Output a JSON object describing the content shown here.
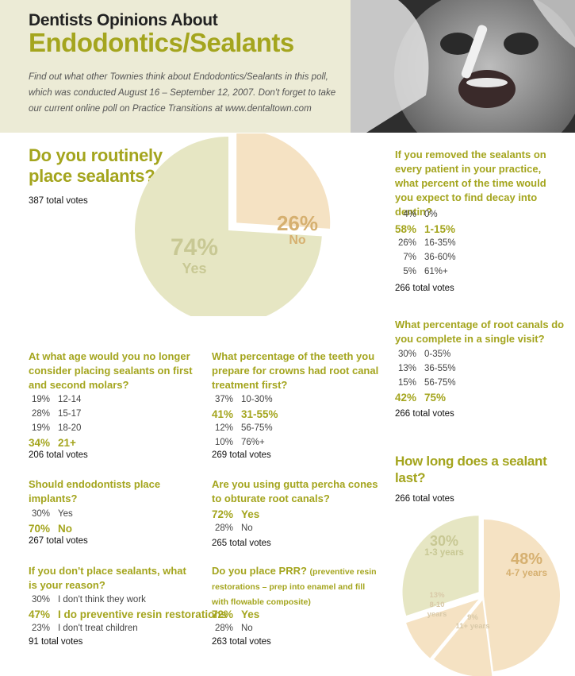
{
  "header": {
    "title_line1": "Dentists Opinions About",
    "title_line2": "Endodontics/Sealants",
    "intro": "Find out what other Townies think about Endodontics/Sealants in this poll, which was conducted August 16 – September 12, 2007. Don't forget to take our current online poll on Practice Transitions at www.dentaltown.com"
  },
  "colors": {
    "accent": "#a4a51e",
    "pie_green": "#e6e6c3",
    "pie_peach": "#f5e2c3",
    "dark_green": "#c8c894",
    "dark_orange": "#d6b070"
  },
  "icons": {
    "photo": "child-dental-exam-photo"
  },
  "chart_data": [
    {
      "type": "pie",
      "title": "Do you routinely place sealants?",
      "total_votes": "387 total votes",
      "slices": [
        {
          "label": "Yes",
          "value": 74
        },
        {
          "label": "No",
          "value": 26
        }
      ]
    },
    {
      "type": "table",
      "title": "If you removed the sealants on every patient in your practice, what percent of the time would you expect to find decay into dentin?",
      "total_votes": "266 total votes",
      "rows": [
        {
          "pct": "4%",
          "label": "0%",
          "highlight": false
        },
        {
          "pct": "58%",
          "label": "1-15%",
          "highlight": true
        },
        {
          "pct": "26%",
          "label": "16-35%",
          "highlight": false
        },
        {
          "pct": "7%",
          "label": "36-60%",
          "highlight": false
        },
        {
          "pct": "5%",
          "label": "61%+",
          "highlight": false
        }
      ]
    },
    {
      "type": "table",
      "title": "What percentage of root canals do you complete in a single visit?",
      "total_votes": "266 total votes",
      "rows": [
        {
          "pct": "30%",
          "label": "0-35%",
          "highlight": false
        },
        {
          "pct": "13%",
          "label": "36-55%",
          "highlight": false
        },
        {
          "pct": "15%",
          "label": "56-75%",
          "highlight": false
        },
        {
          "pct": "42%",
          "label": "75%",
          "highlight": true
        }
      ]
    },
    {
      "type": "table",
      "title": "At what age would you no longer consider placing sealants on first and second molars?",
      "total_votes": "206 total votes",
      "rows": [
        {
          "pct": "19%",
          "label": "12-14",
          "highlight": false
        },
        {
          "pct": "28%",
          "label": "15-17",
          "highlight": false
        },
        {
          "pct": "19%",
          "label": "18-20",
          "highlight": false
        },
        {
          "pct": "34%",
          "label": "21+",
          "highlight": true
        }
      ]
    },
    {
      "type": "table",
      "title": "What percentage of the teeth you prepare for crowns had root canal treatment first?",
      "total_votes": "269 total votes",
      "rows": [
        {
          "pct": "37%",
          "label": "10-30%",
          "highlight": false
        },
        {
          "pct": "41%",
          "label": "31-55%",
          "highlight": true
        },
        {
          "pct": "12%",
          "label": "56-75%",
          "highlight": false
        },
        {
          "pct": "10%",
          "label": "76%+",
          "highlight": false
        }
      ]
    },
    {
      "type": "table",
      "title": "Should endodontists place implants?",
      "total_votes": "267 total votes",
      "rows": [
        {
          "pct": "30%",
          "label": "Yes",
          "highlight": false
        },
        {
          "pct": "70%",
          "label": "No",
          "highlight": true
        }
      ]
    },
    {
      "type": "table",
      "title": "Are you using gutta percha cones to obturate root canals?",
      "total_votes": "265 total votes",
      "rows": [
        {
          "pct": "72%",
          "label": "Yes",
          "highlight": true
        },
        {
          "pct": "28%",
          "label": "No",
          "highlight": false
        }
      ]
    },
    {
      "type": "table",
      "title": "If you don't place sealants, what is your reason?",
      "total_votes": "91 total votes",
      "rows": [
        {
          "pct": "30%",
          "label": "I don't think they work",
          "highlight": false
        },
        {
          "pct": "47%",
          "label": "I do preventive resin restorations",
          "highlight": true
        },
        {
          "pct": "23%",
          "label": "I don't treat children",
          "highlight": false
        }
      ]
    },
    {
      "type": "table",
      "title": "Do you place PRR?",
      "title_note": "(preventive resin restorations – prep into enamel and fill with flowable composite)",
      "total_votes": "263 total votes",
      "rows": [
        {
          "pct": "72%",
          "label": "Yes",
          "highlight": true
        },
        {
          "pct": "28%",
          "label": "No",
          "highlight": false
        }
      ]
    },
    {
      "type": "pie",
      "title": "How long does a sealant last?",
      "total_votes": "266 total votes",
      "slices": [
        {
          "label": "1-3 years",
          "value": 30
        },
        {
          "label": "4-7 years",
          "value": 48
        },
        {
          "label": "8-10 years",
          "value": 13
        },
        {
          "label": "11+ years",
          "value": 9
        }
      ]
    }
  ]
}
